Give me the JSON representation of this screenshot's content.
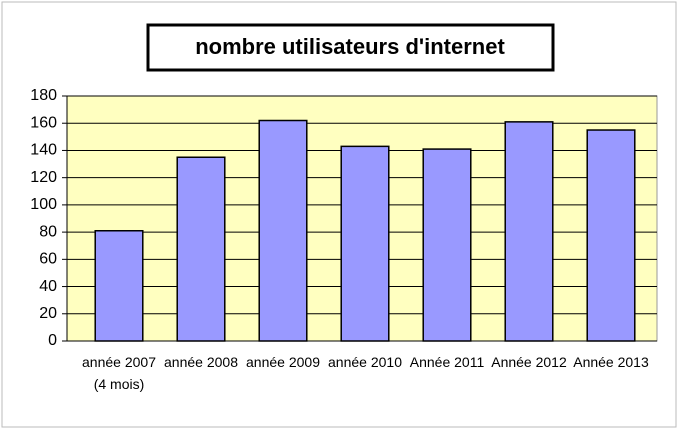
{
  "chart_data": {
    "type": "bar",
    "title": "nombre utilisateurs d'internet",
    "categories": [
      "année 2007 (4 mois)",
      "année 2008",
      "année 2009",
      "année 2010",
      "Année 2011",
      "Année 2012",
      "Année 2013"
    ],
    "values": [
      81,
      135,
      162,
      143,
      141,
      161,
      155
    ],
    "color": "#9999ff",
    "ylim": [
      0,
      180
    ],
    "yticks": [
      0,
      20,
      40,
      60,
      80,
      100,
      120,
      140,
      160,
      180
    ],
    "grid": true
  }
}
